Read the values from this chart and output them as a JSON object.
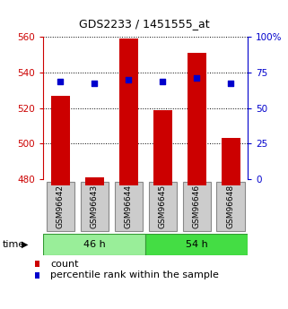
{
  "title": "GDS2233 / 1451555_at",
  "samples": [
    "GSM96642",
    "GSM96643",
    "GSM96644",
    "GSM96645",
    "GSM96646",
    "GSM96648"
  ],
  "counts": [
    527,
    481,
    559,
    519,
    551,
    503
  ],
  "percentiles": [
    535,
    534,
    536,
    535,
    537,
    534
  ],
  "ylim_left": [
    480,
    560
  ],
  "ylim_right": [
    0,
    100
  ],
  "yticks_left": [
    480,
    500,
    520,
    540,
    560
  ],
  "yticks_right": [
    0,
    25,
    50,
    75,
    100
  ],
  "bar_color": "#cc0000",
  "dot_color": "#0000cc",
  "bar_width": 0.55,
  "baseline": 480,
  "left_axis_color": "#cc0000",
  "right_axis_color": "#0000cc",
  "title_color": "#000000",
  "legend_count": "count",
  "legend_pct": "percentile rank within the sample",
  "group1_label": "46 h",
  "group2_label": "54 h",
  "group1_color": "#99ee99",
  "group2_color": "#44dd44",
  "sample_box_color": "#cccccc",
  "sample_box_edge": "#888888"
}
